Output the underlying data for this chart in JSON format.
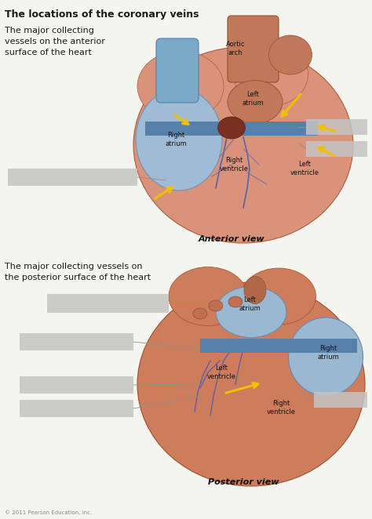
{
  "title_main": "The locations of the coronary veins",
  "title_top": "The major collecting\nvessels on the anterior\nsurface of the heart",
  "title_bottom": "The major collecting vessels on\nthe posterior surface of the heart",
  "label_anterior_view": "Anterior view",
  "label_posterior_view": "Posterior view",
  "copyright": "© 2011 Pearson Education, Inc.",
  "bg_color": "#f5f5f0",
  "box_color": "#c8c8c8",
  "text_color": "#1a1a1a",
  "arrow_color": "#f0c000",
  "heart_salmon": "#cc7a5a",
  "heart_salmon_light": "#d9937a",
  "heart_salmon_dark": "#b05a3a",
  "heart_blue": "#7aaac8",
  "heart_blue_dark": "#5580a8",
  "heart_blue_light": "#9ac0d8",
  "vessel_dark": "#8a4030",
  "vessel_red": "#a04030"
}
